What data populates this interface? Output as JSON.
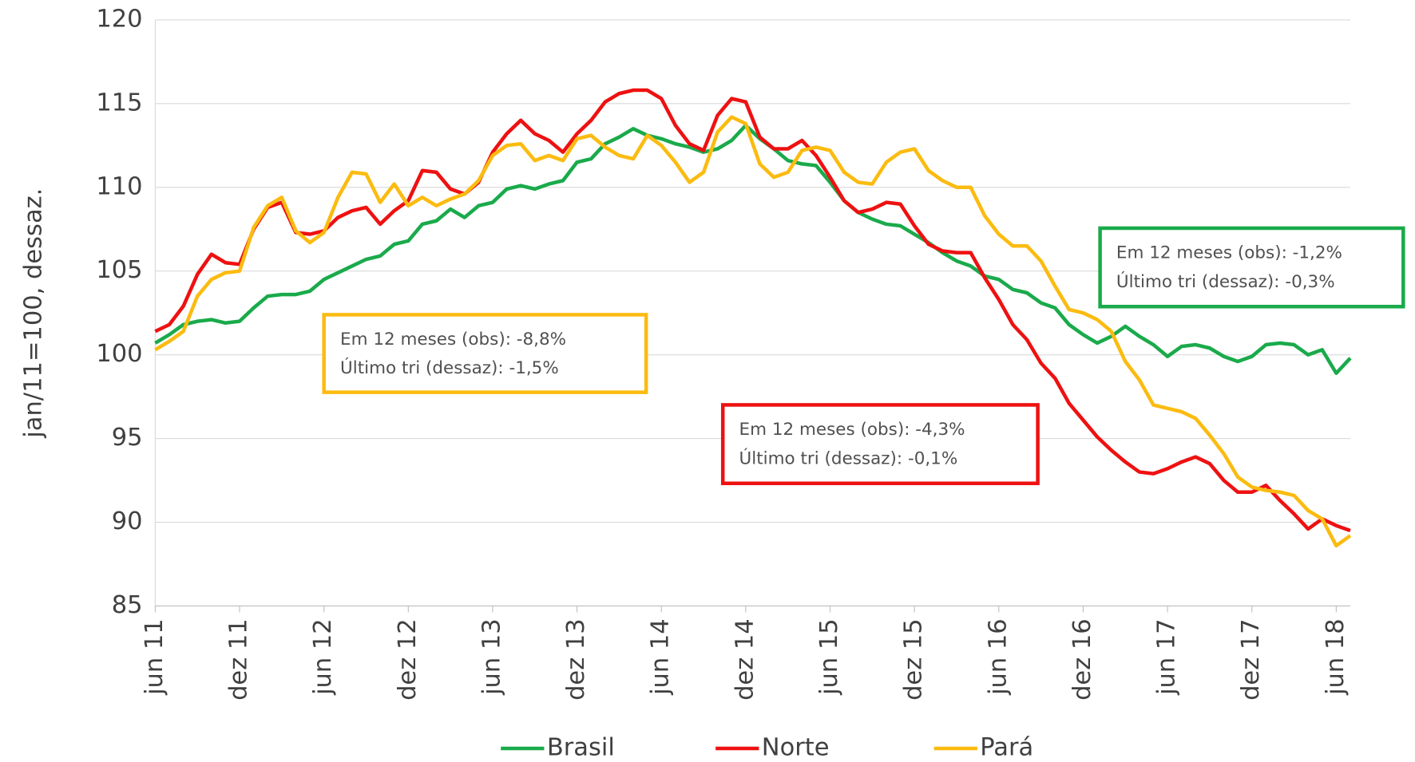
{
  "chart_data": {
    "type": "line",
    "y_label": "jan/11=100, dessaz.",
    "categories": [
      "jun 11",
      null,
      null,
      null,
      null,
      null,
      "dez 11",
      null,
      null,
      null,
      null,
      null,
      "jun 12",
      null,
      null,
      null,
      null,
      null,
      "dez 12",
      null,
      null,
      null,
      null,
      null,
      "jun 13",
      null,
      null,
      null,
      null,
      null,
      "dez 13",
      null,
      null,
      null,
      null,
      null,
      "jun 14",
      null,
      null,
      null,
      null,
      null,
      "dez 14",
      null,
      null,
      null,
      null,
      null,
      "jun 15",
      null,
      null,
      null,
      null,
      null,
      "dez 15",
      null,
      null,
      null,
      null,
      null,
      "jun 16",
      null,
      null,
      null,
      null,
      null,
      "dez 16",
      null,
      null,
      null,
      null,
      null,
      "jun 17",
      null,
      null,
      null,
      null,
      null,
      "dez 17",
      null,
      null,
      null,
      null,
      null,
      "jun 18",
      null
    ],
    "series": [
      {
        "name": "Brasil",
        "color": "#1aaa4b",
        "values": [
          100.7,
          101.2,
          101.8,
          102.0,
          102.1,
          101.9,
          102.0,
          102.8,
          103.5,
          103.6,
          103.6,
          103.8,
          104.5,
          104.9,
          105.3,
          105.7,
          105.9,
          106.6,
          106.8,
          107.8,
          108.0,
          108.7,
          108.2,
          108.9,
          109.1,
          109.9,
          110.1,
          109.9,
          110.2,
          110.4,
          111.5,
          111.7,
          112.6,
          113.0,
          113.5,
          113.1,
          112.9,
          112.6,
          112.4,
          112.1,
          112.3,
          112.8,
          113.7,
          112.9,
          112.3,
          111.6,
          111.4,
          111.3,
          110.3,
          109.2,
          108.5,
          108.1,
          107.8,
          107.7,
          107.2,
          106.7,
          106.1,
          105.6,
          105.3,
          104.7,
          104.5,
          103.9,
          103.7,
          103.1,
          102.8,
          101.8,
          101.2,
          100.7,
          101.1,
          101.7,
          101.1,
          100.6,
          99.9,
          100.5,
          100.6,
          100.4,
          99.9,
          99.6,
          99.9,
          100.6,
          100.7,
          100.6,
          100.0,
          100.3,
          98.9,
          99.8
        ]
      },
      {
        "name": "Norte",
        "color": "#ee1111",
        "values": [
          101.4,
          101.8,
          102.9,
          104.8,
          106.0,
          105.5,
          105.4,
          107.5,
          108.8,
          109.1,
          107.3,
          107.2,
          107.4,
          108.2,
          108.6,
          108.8,
          107.8,
          108.6,
          109.2,
          111.0,
          110.9,
          109.9,
          109.6,
          110.3,
          112.1,
          113.2,
          114.0,
          113.2,
          112.8,
          112.1,
          113.2,
          114.0,
          115.1,
          115.6,
          115.8,
          115.8,
          115.3,
          113.7,
          112.6,
          112.2,
          114.3,
          115.3,
          115.1,
          113.0,
          112.3,
          112.3,
          112.8,
          111.9,
          110.6,
          109.2,
          108.5,
          108.7,
          109.1,
          109.0,
          107.7,
          106.6,
          106.2,
          106.1,
          106.1,
          104.6,
          103.3,
          101.8,
          100.9,
          99.5,
          98.6,
          97.1,
          96.1,
          95.1,
          94.3,
          93.6,
          93.0,
          92.9,
          93.2,
          93.6,
          93.9,
          93.5,
          92.5,
          91.8,
          91.8,
          92.2,
          91.3,
          90.5,
          89.6,
          90.2,
          89.8,
          89.5
        ]
      },
      {
        "name": "Pará",
        "color": "#fbbb10",
        "values": [
          100.3,
          100.8,
          101.4,
          103.5,
          104.5,
          104.9,
          105.0,
          107.6,
          108.9,
          109.4,
          107.4,
          106.7,
          107.3,
          109.4,
          110.9,
          110.8,
          109.1,
          110.2,
          108.9,
          109.4,
          108.9,
          109.3,
          109.6,
          110.4,
          111.9,
          112.5,
          112.6,
          111.6,
          111.9,
          111.6,
          112.9,
          113.1,
          112.4,
          111.9,
          111.7,
          113.1,
          112.5,
          111.5,
          110.3,
          110.9,
          113.3,
          114.2,
          113.8,
          111.4,
          110.6,
          110.9,
          112.2,
          112.4,
          112.2,
          110.9,
          110.3,
          110.2,
          111.5,
          112.1,
          112.3,
          111.0,
          110.4,
          110.0,
          110.0,
          108.3,
          107.2,
          106.5,
          106.5,
          105.6,
          104.1,
          102.7,
          102.5,
          102.1,
          101.4,
          99.6,
          98.5,
          97.0,
          96.8,
          96.6,
          96.2,
          95.2,
          94.1,
          92.7,
          92.1,
          91.9,
          91.8,
          91.6,
          90.7,
          90.2,
          88.6,
          89.2
        ]
      }
    ],
    "ylim": [
      85,
      120
    ],
    "yticks": [
      85,
      90,
      95,
      100,
      105,
      110,
      115,
      120
    ],
    "grid": true,
    "legend": "bottom",
    "annotations": [
      {
        "color": "#fbbb10",
        "lines": [
          "Em 12 meses (obs): -8,8%",
          "Último tri (dessaz): -1,5%"
        ]
      },
      {
        "color": "#ee1111",
        "lines": [
          "Em 12 meses (obs): -4,3%",
          "Último tri (dessaz): -0,1%"
        ]
      },
      {
        "color": "#1aaa4b",
        "lines": [
          "Em 12 meses (obs): -1,2%",
          "Último tri (dessaz): -0,3%"
        ]
      }
    ]
  }
}
